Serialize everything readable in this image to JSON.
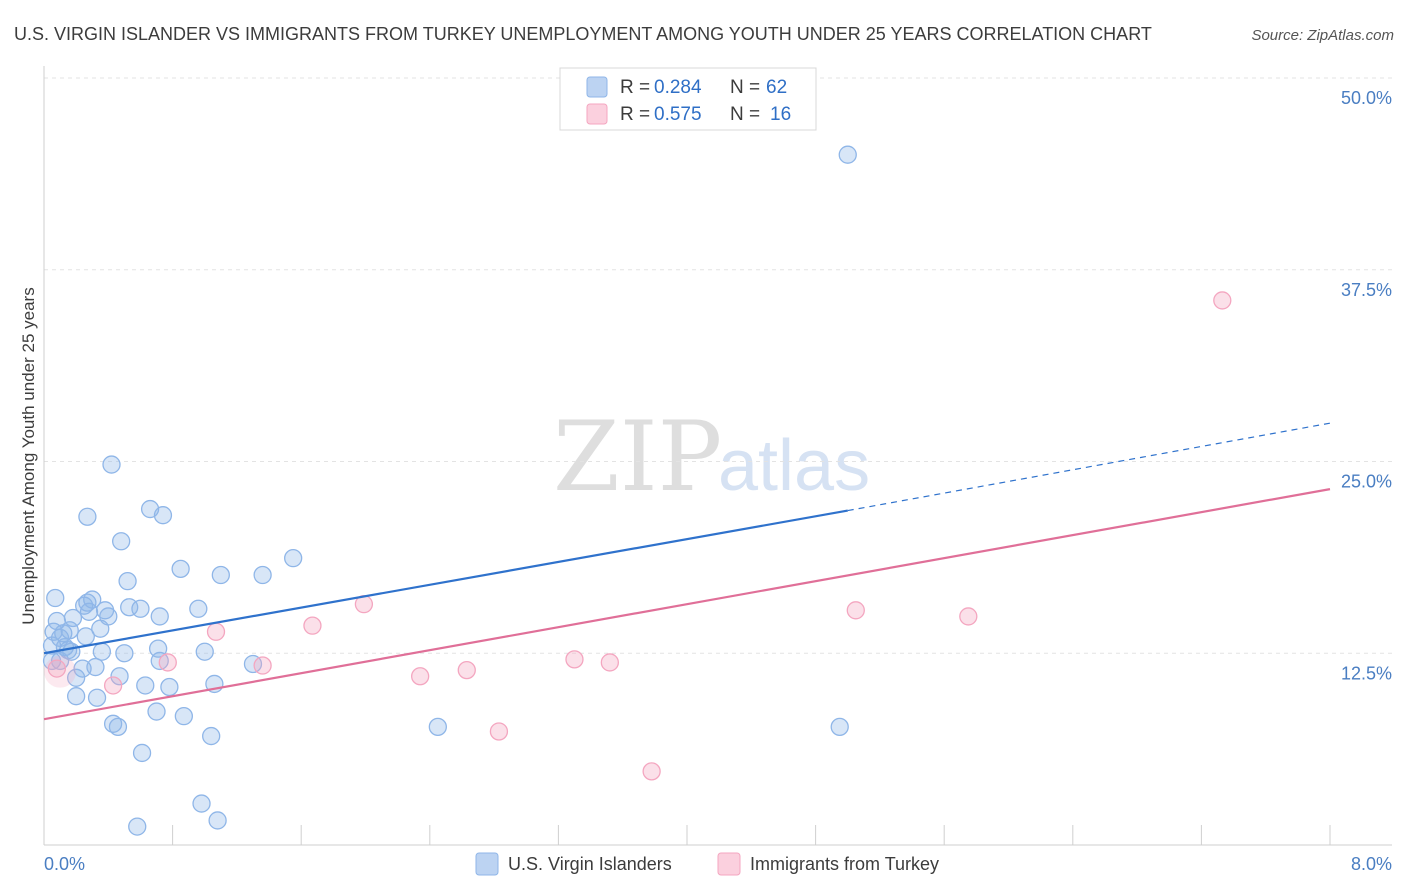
{
  "title": "U.S. VIRGIN ISLANDER VS IMMIGRANTS FROM TURKEY UNEMPLOYMENT AMONG YOUTH UNDER 25 YEARS CORRELATION CHART",
  "source": "Source: ZipAtlas.com",
  "watermark": {
    "zip": "ZIP",
    "atlas": "atlas"
  },
  "legend_top": [
    {
      "r_label": "R = ",
      "r_value": "0.284",
      "n_label": "N = ",
      "n_value": "62"
    },
    {
      "r_label": "R = ",
      "r_value": "0.575",
      "n_label": "N = ",
      "n_value": "16"
    }
  ],
  "chart_data": {
    "type": "scatter",
    "title": "U.S. VIRGIN ISLANDER VS IMMIGRANTS FROM TURKEY UNEMPLOYMENT AMONG YOUTH UNDER 25 YEARS CORRELATION CHART",
    "xlabel": "",
    "ylabel": "Unemployment Among Youth under 25 years",
    "xlim": [
      0,
      8
    ],
    "ylim": [
      0,
      50
    ],
    "x_tick_labels": [
      "0.0%",
      "8.0%"
    ],
    "y_ticks": [
      12.5,
      25,
      37.5,
      50
    ],
    "y_tick_labels": [
      "12.5%",
      "25.0%",
      "37.5%",
      "50.0%"
    ],
    "grid": true,
    "legend_position": "top-center",
    "series": [
      {
        "name": "U.S. Virgin Islanders",
        "color": "#8fb6e8",
        "line_color": "#2f72cc",
        "r": 0.284,
        "n": 62,
        "trend": {
          "x_start": 0,
          "y_start": 12.5,
          "x_solid_end": 5.0,
          "y_solid_end": 21.8,
          "x_end": 8.0,
          "y_end": 27.5
        },
        "points": [
          [
            0.05,
            12.0
          ],
          [
            0.05,
            13.0
          ],
          [
            0.06,
            13.9
          ],
          [
            0.07,
            16.1
          ],
          [
            0.08,
            14.6
          ],
          [
            0.1,
            12.0
          ],
          [
            0.1,
            13.5
          ],
          [
            0.12,
            13.8
          ],
          [
            0.13,
            12.9
          ],
          [
            0.15,
            12.7
          ],
          [
            0.16,
            14.0
          ],
          [
            0.17,
            12.6
          ],
          [
            0.18,
            14.8
          ],
          [
            0.2,
            10.9
          ],
          [
            0.2,
            9.7
          ],
          [
            0.24,
            11.5
          ],
          [
            0.25,
            15.6
          ],
          [
            0.26,
            13.6
          ],
          [
            0.27,
            15.8
          ],
          [
            0.27,
            21.4
          ],
          [
            0.28,
            15.2
          ],
          [
            0.3,
            16.0
          ],
          [
            0.32,
            11.6
          ],
          [
            0.33,
            9.6
          ],
          [
            0.35,
            14.1
          ],
          [
            0.36,
            12.6
          ],
          [
            0.38,
            15.3
          ],
          [
            0.4,
            14.9
          ],
          [
            0.42,
            24.8
          ],
          [
            0.43,
            7.9
          ],
          [
            0.46,
            7.7
          ],
          [
            0.47,
            11.0
          ],
          [
            0.48,
            19.8
          ],
          [
            0.5,
            12.5
          ],
          [
            0.52,
            17.2
          ],
          [
            0.53,
            15.5
          ],
          [
            0.58,
            1.2
          ],
          [
            0.6,
            15.4
          ],
          [
            0.61,
            6.0
          ],
          [
            0.63,
            10.4
          ],
          [
            0.66,
            21.9
          ],
          [
            0.7,
            8.7
          ],
          [
            0.71,
            12.8
          ],
          [
            0.72,
            14.9
          ],
          [
            0.72,
            12.0
          ],
          [
            0.74,
            21.5
          ],
          [
            0.78,
            10.3
          ],
          [
            0.85,
            18.0
          ],
          [
            0.87,
            8.4
          ],
          [
            0.96,
            15.4
          ],
          [
            0.98,
            2.7
          ],
          [
            1.0,
            12.6
          ],
          [
            1.04,
            7.1
          ],
          [
            1.06,
            10.5
          ],
          [
            1.08,
            1.6
          ],
          [
            1.1,
            17.6
          ],
          [
            1.3,
            11.8
          ],
          [
            1.36,
            17.6
          ],
          [
            1.55,
            18.7
          ],
          [
            2.45,
            7.7
          ],
          [
            5.0,
            45.0
          ],
          [
            4.95,
            7.7
          ]
        ]
      },
      {
        "name": "Immigrants from Turkey",
        "color": "#f4a6c0",
        "line_color": "#e06f98",
        "r": 0.575,
        "n": 16,
        "trend": {
          "x_start": 0,
          "y_start": 8.2,
          "x_end": 8.0,
          "y_end": 23.2
        },
        "points": [
          [
            0.08,
            11.5
          ],
          [
            0.43,
            10.4
          ],
          [
            0.77,
            11.9
          ],
          [
            1.07,
            13.9
          ],
          [
            1.36,
            11.7
          ],
          [
            1.67,
            14.3
          ],
          [
            1.99,
            15.7
          ],
          [
            2.34,
            11.0
          ],
          [
            2.63,
            11.4
          ],
          [
            2.83,
            7.4
          ],
          [
            3.3,
            12.1
          ],
          [
            3.52,
            11.9
          ],
          [
            3.78,
            4.8
          ],
          [
            5.05,
            15.3
          ],
          [
            5.75,
            14.9
          ],
          [
            7.33,
            35.5
          ]
        ]
      }
    ]
  }
}
